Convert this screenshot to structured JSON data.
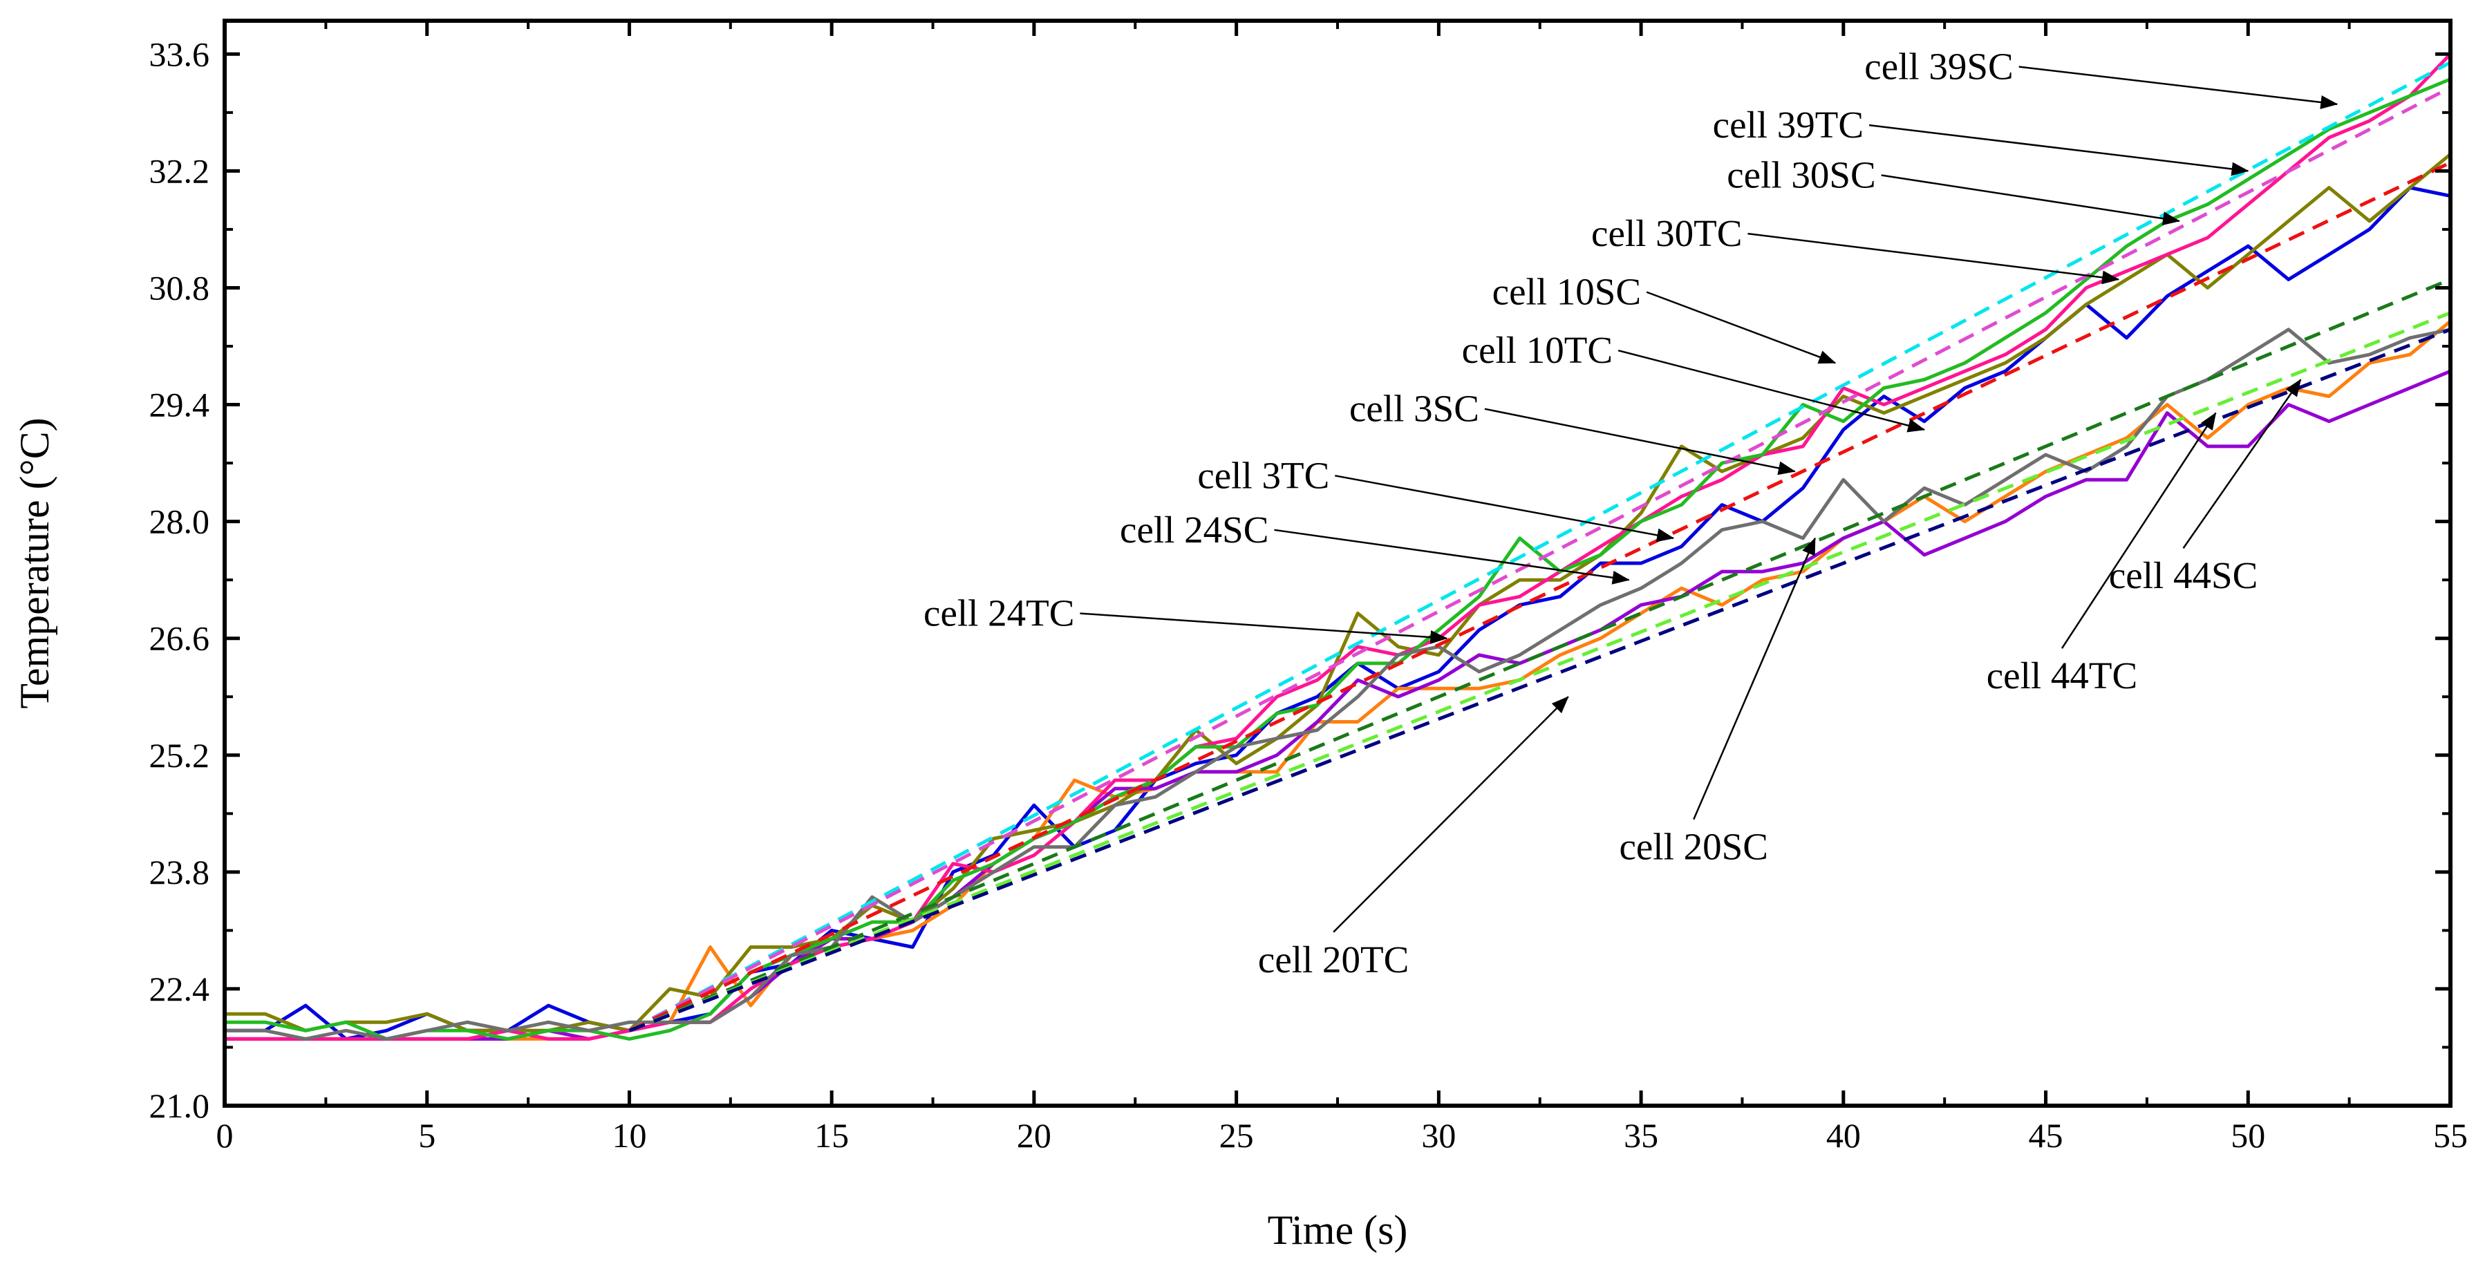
{
  "chart_data": {
    "type": "line",
    "xlabel": "Time (s)",
    "ylabel": "Temperature (°C)",
    "xlim": [
      0,
      55
    ],
    "ylim": [
      21.0,
      34.0
    ],
    "xticks": [
      "0",
      "5",
      "10",
      "15",
      "20",
      "25",
      "30",
      "35",
      "40",
      "45",
      "50",
      "55"
    ],
    "yticks": [
      "21.0",
      "22.4",
      "23.8",
      "25.2",
      "26.6",
      "28.0",
      "29.4",
      "30.8",
      "32.2",
      "33.6"
    ],
    "grid": false,
    "x": [
      0,
      1,
      2,
      3,
      4,
      5,
      6,
      7,
      8,
      9,
      10,
      11,
      12,
      13,
      14,
      15,
      16,
      17,
      18,
      19,
      20,
      21,
      22,
      23,
      24,
      25,
      26,
      27,
      28,
      29,
      30,
      31,
      32,
      33,
      34,
      35,
      36,
      37,
      38,
      39,
      40,
      41,
      42,
      43,
      44,
      45,
      46,
      47,
      48,
      49,
      50,
      51,
      52,
      53,
      54,
      55
    ],
    "measured_series": [
      {
        "color": "#0000e0",
        "values": [
          21.9,
          21.9,
          22.2,
          21.8,
          21.9,
          22.1,
          21.9,
          21.9,
          22.2,
          22.0,
          21.9,
          22.0,
          22.1,
          22.6,
          22.7,
          23.1,
          23.0,
          22.9,
          23.8,
          24.0,
          24.6,
          24.1,
          24.3,
          24.9,
          25.1,
          25.2,
          25.7,
          25.9,
          26.3,
          26.0,
          26.2,
          26.7,
          27.0,
          27.1,
          27.5,
          27.5,
          27.7,
          28.2,
          28.0,
          28.4,
          29.1,
          29.5,
          29.2,
          29.6,
          29.8,
          30.2,
          30.6,
          30.2,
          30.7,
          31.0,
          31.3,
          30.9,
          31.2,
          31.5,
          32.0,
          31.9
        ]
      },
      {
        "color": "#ff7f0e",
        "values": [
          21.8,
          21.8,
          21.8,
          21.8,
          21.8,
          21.8,
          21.8,
          21.8,
          21.8,
          21.8,
          21.9,
          22.0,
          22.9,
          22.2,
          22.8,
          22.9,
          23.0,
          23.1,
          23.4,
          23.9,
          24.2,
          24.9,
          24.7,
          24.8,
          25.0,
          25.0,
          25.0,
          25.6,
          25.6,
          26.0,
          26.0,
          26.0,
          26.1,
          26.4,
          26.6,
          26.9,
          27.2,
          27.0,
          27.3,
          27.4,
          27.8,
          28.0,
          28.3,
          28.0,
          28.3,
          28.6,
          28.8,
          29.0,
          29.4,
          29.0,
          29.4,
          29.6,
          29.5,
          29.9,
          30.0,
          30.4
        ]
      },
      {
        "color": "#808000",
        "values": [
          22.1,
          22.1,
          21.9,
          22.0,
          22.0,
          22.1,
          21.9,
          21.9,
          21.9,
          22.0,
          21.9,
          22.4,
          22.3,
          22.9,
          22.9,
          23.0,
          23.4,
          23.2,
          23.6,
          24.2,
          24.3,
          24.4,
          24.6,
          24.9,
          25.5,
          25.1,
          25.4,
          25.8,
          26.9,
          26.5,
          26.4,
          27.0,
          27.3,
          27.3,
          27.6,
          28.1,
          28.9,
          28.6,
          28.8,
          29.0,
          29.5,
          29.3,
          29.5,
          29.7,
          29.9,
          30.2,
          30.6,
          30.9,
          31.2,
          30.8,
          31.2,
          31.6,
          32.0,
          31.6,
          32.0,
          32.4
        ]
      },
      {
        "color": "#9400d3",
        "values": [
          21.8,
          21.8,
          21.8,
          21.8,
          21.8,
          21.8,
          21.8,
          21.8,
          21.9,
          21.8,
          21.9,
          22.0,
          22.0,
          22.3,
          22.7,
          23.0,
          23.0,
          23.2,
          23.5,
          23.9,
          24.2,
          24.4,
          24.8,
          24.8,
          25.0,
          25.0,
          25.2,
          25.6,
          26.1,
          25.9,
          26.1,
          26.4,
          26.3,
          26.5,
          26.7,
          27.0,
          27.1,
          27.4,
          27.4,
          27.5,
          27.8,
          28.0,
          27.6,
          27.8,
          28.0,
          28.3,
          28.5,
          28.5,
          29.3,
          28.9,
          28.9,
          29.4,
          29.2,
          29.4,
          29.6,
          29.8
        ]
      },
      {
        "color": "#ff1493",
        "values": [
          21.8,
          21.8,
          21.8,
          21.8,
          21.8,
          21.8,
          21.8,
          21.9,
          21.8,
          21.8,
          21.9,
          22.0,
          22.0,
          22.4,
          22.7,
          22.9,
          23.0,
          23.2,
          23.9,
          23.8,
          24.0,
          24.4,
          24.9,
          24.9,
          25.3,
          25.4,
          25.9,
          26.1,
          26.5,
          26.4,
          26.6,
          27.0,
          27.1,
          27.4,
          27.7,
          28.0,
          28.3,
          28.5,
          28.8,
          28.9,
          29.6,
          29.4,
          29.6,
          29.8,
          30.0,
          30.3,
          30.8,
          31.0,
          31.2,
          31.4,
          31.8,
          32.2,
          32.6,
          32.8,
          33.1,
          33.6
        ]
      },
      {
        "color": "#22bb22",
        "values": [
          22.0,
          22.0,
          21.9,
          22.0,
          21.8,
          21.9,
          21.9,
          21.8,
          21.9,
          21.9,
          21.8,
          21.9,
          22.1,
          22.6,
          22.8,
          23.0,
          23.2,
          23.2,
          23.7,
          23.9,
          24.2,
          24.4,
          24.7,
          24.9,
          25.3,
          25.3,
          25.7,
          25.8,
          26.3,
          26.3,
          26.7,
          27.1,
          27.8,
          27.4,
          27.6,
          28.0,
          28.2,
          28.7,
          28.8,
          29.4,
          29.2,
          29.6,
          29.7,
          29.9,
          30.2,
          30.5,
          30.9,
          31.3,
          31.6,
          31.8,
          32.1,
          32.4,
          32.7,
          32.9,
          33.1,
          33.3
        ]
      },
      {
        "color": "#6f6f6f",
        "values": [
          21.9,
          21.9,
          21.8,
          21.9,
          21.8,
          21.9,
          22.0,
          21.9,
          22.0,
          21.9,
          22.0,
          22.0,
          22.0,
          22.3,
          22.8,
          22.9,
          23.5,
          23.2,
          23.5,
          23.8,
          24.1,
          24.1,
          24.6,
          24.7,
          25.0,
          25.3,
          25.4,
          25.5,
          25.9,
          26.4,
          26.5,
          26.2,
          26.4,
          26.7,
          27.0,
          27.2,
          27.5,
          27.9,
          28.0,
          27.8,
          28.5,
          28.0,
          28.4,
          28.2,
          28.5,
          28.8,
          28.6,
          28.9,
          29.5,
          29.7,
          30.0,
          30.3,
          29.9,
          30.0,
          30.2,
          30.3
        ]
      }
    ],
    "fit_series": [
      {
        "color": "#00e5ee",
        "start": [
          10,
          21.9
        ],
        "end": [
          55,
          33.5
        ]
      },
      {
        "color": "#e04bd0",
        "start": [
          10,
          21.9
        ],
        "end": [
          55,
          33.2
        ]
      },
      {
        "color": "#ee1111",
        "start": [
          10,
          21.9
        ],
        "end": [
          55,
          32.3
        ]
      },
      {
        "color": "#1a7a1a",
        "start": [
          10,
          21.9
        ],
        "end": [
          55,
          30.9
        ]
      },
      {
        "color": "#66ee33",
        "start": [
          10,
          21.9
        ],
        "end": [
          55,
          30.5
        ]
      },
      {
        "color": "#000080",
        "start": [
          10,
          21.9
        ],
        "end": [
          55,
          30.3
        ]
      }
    ],
    "annotations": [
      {
        "text": "cell 39SC",
        "text_at": [
          44.2,
          33.3
        ],
        "anchor": "end",
        "arrow_to": [
          52.2,
          33.0
        ]
      },
      {
        "text": "cell 39TC",
        "text_at": [
          40.5,
          32.6
        ],
        "anchor": "end",
        "arrow_to": [
          50.0,
          32.2
        ]
      },
      {
        "text": "cell 30SC",
        "text_at": [
          40.8,
          32.0
        ],
        "anchor": "end",
        "arrow_to": [
          48.3,
          31.6
        ]
      },
      {
        "text": "cell 30TC",
        "text_at": [
          37.5,
          31.3
        ],
        "anchor": "end",
        "arrow_to": [
          46.8,
          30.9
        ]
      },
      {
        "text": "cell 10SC",
        "text_at": [
          35.0,
          30.6
        ],
        "anchor": "end",
        "arrow_to": [
          39.8,
          29.9
        ]
      },
      {
        "text": "cell 10TC",
        "text_at": [
          34.3,
          29.9
        ],
        "anchor": "end",
        "arrow_to": [
          42.0,
          29.1
        ]
      },
      {
        "text": "cell 3SC",
        "text_at": [
          31.0,
          29.2
        ],
        "anchor": "end",
        "arrow_to": [
          38.8,
          28.6
        ]
      },
      {
        "text": "cell 3TC",
        "text_at": [
          27.3,
          28.4
        ],
        "anchor": "end",
        "arrow_to": [
          35.8,
          27.8
        ]
      },
      {
        "text": "cell 24SC",
        "text_at": [
          25.8,
          27.75
        ],
        "anchor": "end",
        "arrow_to": [
          34.7,
          27.3
        ]
      },
      {
        "text": "cell 24TC",
        "text_at": [
          21.0,
          26.75
        ],
        "anchor": "end",
        "arrow_to": [
          30.2,
          26.6
        ]
      },
      {
        "text": "cell 44SC",
        "text_at": [
          48.4,
          27.2
        ],
        "anchor": "middle",
        "arrow_to": [
          51.3,
          29.7
        ]
      },
      {
        "text": "cell 44TC",
        "text_at": [
          45.4,
          26.0
        ],
        "anchor": "middle",
        "arrow_to": [
          49.2,
          29.3
        ]
      },
      {
        "text": "cell 20SC",
        "text_at": [
          36.3,
          23.95
        ],
        "anchor": "middle",
        "arrow_to": [
          39.3,
          27.8
        ]
      },
      {
        "text": "cell 20TC",
        "text_at": [
          27.4,
          22.6
        ],
        "anchor": "middle",
        "arrow_to": [
          33.2,
          25.9
        ]
      }
    ]
  }
}
